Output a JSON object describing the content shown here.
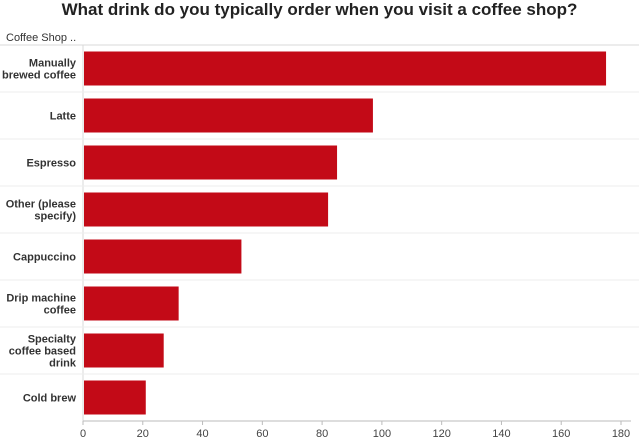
{
  "chart_data": {
    "type": "bar",
    "orientation": "horizontal",
    "title": "What drink do you typically order when you visit a coffee shop?",
    "row_header": "Coffee Shop ..",
    "categories": [
      "Manually brewed coffee",
      "Latte",
      "Espresso",
      "Other (please specify)",
      "Cappuccino",
      "Drip machine coffee",
      "Specialty coffee based drink",
      "Cold brew"
    ],
    "values": [
      175,
      97,
      85,
      82,
      53,
      32,
      27,
      21
    ],
    "xlim": [
      0,
      180
    ],
    "xticks": [
      0,
      20,
      40,
      60,
      80,
      100,
      120,
      140,
      160,
      180
    ],
    "xlabel": "",
    "ylabel": "",
    "grid": false,
    "legend": "none",
    "colors": {
      "bar": "#c30a17",
      "separator": "#d9d9d9",
      "axis": "#bbbbbb"
    }
  }
}
